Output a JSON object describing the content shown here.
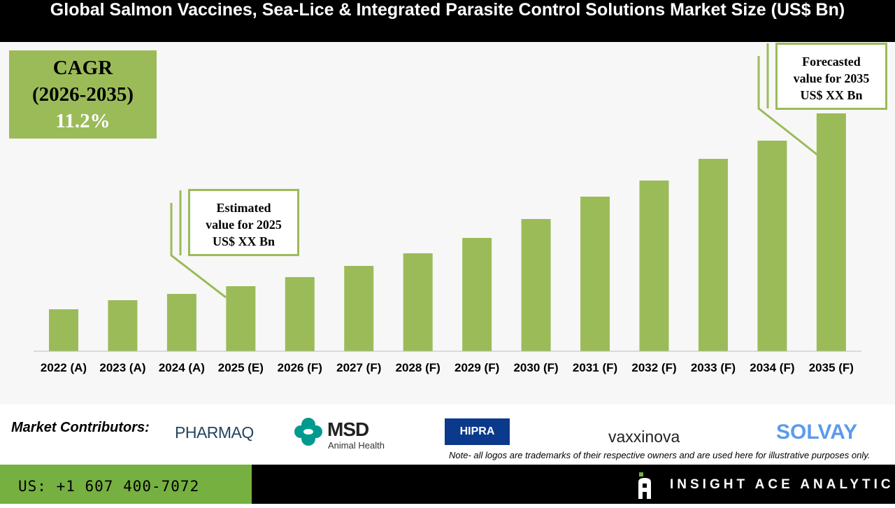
{
  "chart_data": {
    "type": "bar",
    "title": "Global Salmon Vaccines, Sea-Lice & Integrated Parasite Control Solutions Market Size (US$ Bn)",
    "categories": [
      "2022 (A)",
      "2023 (A)",
      "2024 (A)",
      "2025 (E)",
      "2026 (F)",
      "2027 (F)",
      "2028 (F)",
      "2029 (F)",
      "2030 (F)",
      "2031 (F)",
      "2032 (F)",
      "2033 (F)",
      "2034 (F)",
      "2035 (F)"
    ],
    "values": [
      60,
      73,
      82,
      93,
      106,
      122,
      140,
      162,
      189,
      221,
      244,
      275,
      301,
      340
    ],
    "values_note_relative": true,
    "ylim": [
      0,
      340
    ],
    "grid": false,
    "bar_color": "#9bbb59",
    "annotations": {
      "cagr": {
        "line1": "CAGR",
        "line2": "(2026-2035)",
        "value": "11.2%"
      },
      "estimated": {
        "line1": "Estimated",
        "line2": "value for 2025",
        "line3": "US$ XX Bn"
      },
      "forecast": {
        "line1": "Forecasted",
        "line2": "value for 2035",
        "line3": "US$ XX Bn"
      }
    }
  },
  "contributors": {
    "label": "Market Contributors:",
    "logos": [
      "PHARMAQ",
      "MSD",
      "Animal Health",
      "HIPRA",
      "vaxxinova",
      "SOLVAY"
    ]
  },
  "note": "Note- all logos are trademarks of their respective owners and are used here for illustrative purposes only.",
  "footer": {
    "phone": "US: +1 607 400-7072",
    "brand": "INSIGHT ACE ANALYTIC"
  }
}
